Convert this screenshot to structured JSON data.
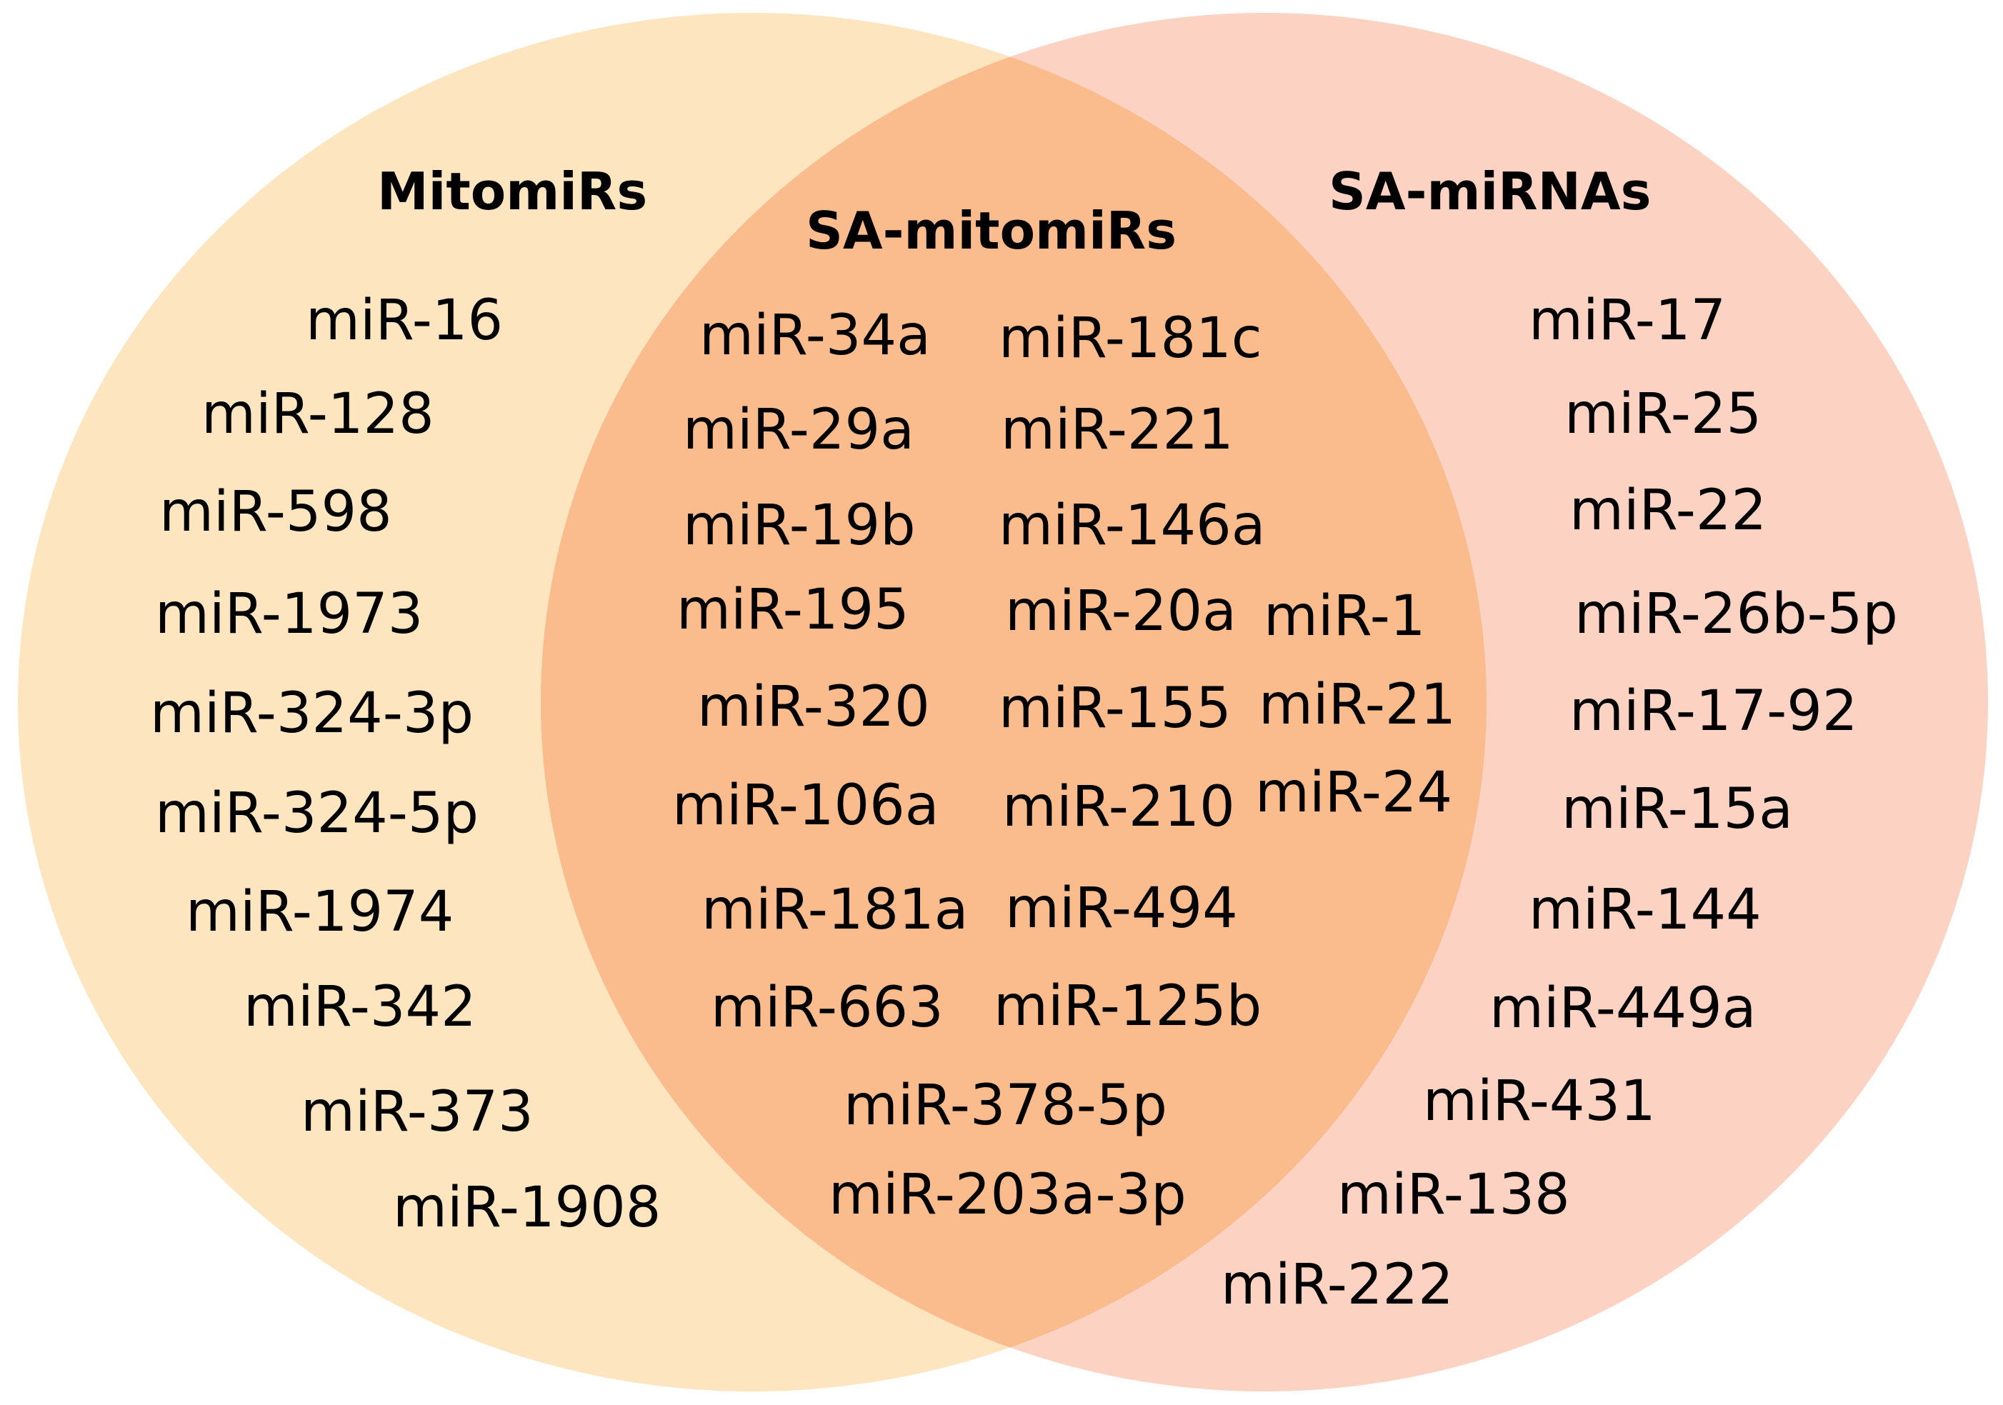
{
  "colors": {
    "left_circle": "#FCE5BF",
    "right_circle": "#FCD2C3",
    "overlap": "#FABB8D",
    "text": "#000000"
  },
  "sets": {
    "left": {
      "title": "MitomiRs",
      "items": [
        "miR-16",
        "miR-128",
        "miR-598",
        "miR-1973",
        "miR-324-3p",
        "miR-324-5p",
        "miR-1974",
        "miR-342",
        "miR-373",
        "miR-1908"
      ]
    },
    "overlap": {
      "title": "SA-mitomiRs",
      "col1": [
        "miR-34a",
        "miR-29a",
        "miR-19b",
        "miR-195",
        "miR-320",
        "miR-106a",
        "miR-181a",
        "miR-663"
      ],
      "col2": [
        "miR-181c",
        "miR-221",
        "miR-146a",
        "miR-20a",
        "miR-155",
        "miR-210",
        "miR-494",
        "miR-125b"
      ],
      "col3": [
        "miR-1",
        "miR-21",
        "miR-24"
      ],
      "bottom": [
        "miR-378-5p",
        "miR-203a-3p"
      ]
    },
    "right": {
      "title": "SA-miRNAs",
      "items": [
        "miR-17",
        "miR-25",
        "miR-22",
        "miR-26b-5p",
        "miR-17-92",
        "miR-15a",
        "miR-144",
        "miR-449a",
        "miR-431",
        "miR-138",
        "miR-222"
      ]
    }
  }
}
